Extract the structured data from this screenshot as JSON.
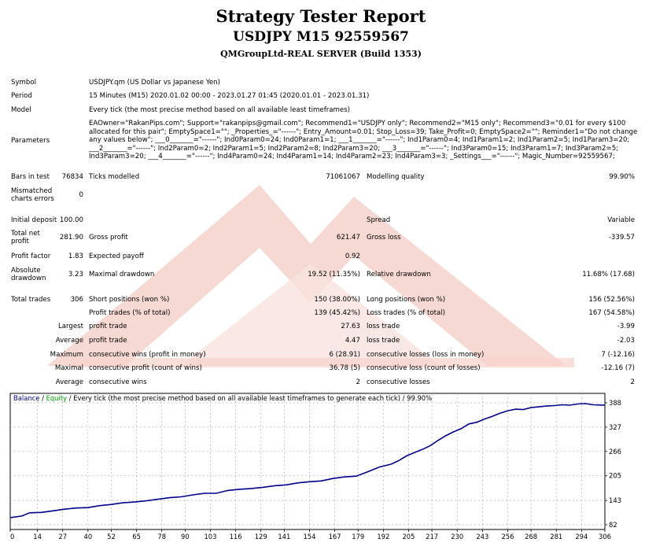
{
  "header": {
    "title": "Strategy Tester Report",
    "subtitle": "USDJPY M15 92559567",
    "server": "QMGroupLtd-REAL SERVER (Build 1353)"
  },
  "info": {
    "symbol_label": "Symbol",
    "symbol_value": "USDJPY.qm (US Dollar vs Japanese Yen)",
    "period_label": "Period",
    "period_value": "15 Minutes (M15) 2020.01.02 00:00 - 2023.01.27 01:45 (2020.01.01 - 2023.01.31)",
    "model_label": "Model",
    "model_value": "Every tick (the most precise method based on all available least timeframes)",
    "parameters_label": "Parameters",
    "parameters_value": "EAOwner=\"RakanPips.com\"; Support=\"rakanpips@gmail.com\"; Recommend1=\"USDJPY only\"; Recommend2=\"M15 only\"; Recommend3=\"0.01 for every $100 allocated for this pair\"; EmptySpace1=\"\"; _Properties_=\"------\"; Entry_Amount=0.01; Stop_Loss=39; Take_Profit=0; EmptySpace2=\"\"; Reminder1=\"Do not change any values below\"; ___0_______=\"------\"; Ind0Param0=24; Ind0Param1=1; ___1_______=\"------\"; Ind1Param0=4; Ind1Param1=2; Ind1Param2=5; Ind1Param3=20; ___2_______=\"------\"; Ind2Param0=2; Ind2Param1=5; Ind2Param2=8; Ind2Param3=20; ___3_______=\"------\"; Ind3Param0=15; Ind3Param1=7; Ind3Param2=5; Ind3Param3=20; ___4_______=\"------\"; Ind4Param0=24; Ind4Param1=14; Ind4Param2=23; Ind4Param3=3; _Settings___=\"------\"; Magic_Number=92559567;"
  },
  "stats": {
    "bars_label": "Bars in test",
    "bars_value": "76834",
    "ticks_label": "Ticks modelled",
    "ticks_value": "71061067",
    "quality_label": "Modelling quality",
    "quality_value": "99.90%",
    "mismatch_label_1": "Mismatched",
    "mismatch_label_2": "charts errors",
    "mismatch_value": "0",
    "deposit_label": "Initial deposit",
    "deposit_value": "100.00",
    "spread_label": "Spread",
    "spread_value": "Variable",
    "netprofit_label_1": "Total net",
    "netprofit_label_2": "profit",
    "netprofit_value": "281.90",
    "grossprofit_label": "Gross profit",
    "grossprofit_value": "621.47",
    "grossloss_label": "Gross loss",
    "grossloss_value": "-339.57",
    "pf_label": "Profit factor",
    "pf_value": "1.83",
    "payoff_label": "Expected payoff",
    "payoff_value": "0.92",
    "absdd_label_1": "Absolute",
    "absdd_label_2": "drawdown",
    "absdd_value": "3.23",
    "maxdd_label": "Maximal drawdown",
    "maxdd_value": "19.52 (11.35%)",
    "reldd_label": "Relative drawdown",
    "reldd_value": "11.68% (17.68)",
    "trades_label": "Total trades",
    "trades_value": "306",
    "short_label": "Short positions (won %)",
    "short_value": "150 (38.00%)",
    "long_label": "Long positions (won %)",
    "long_value": "156 (52.56%)",
    "pt_label": "Profit trades (% of total)",
    "pt_value": "139 (45.42%)",
    "lt_label": "Loss trades (% of total)",
    "lt_value": "167 (54.58%)",
    "largest_label": "Largest",
    "largest_pt_label": "profit trade",
    "largest_pt_value": "27.63",
    "largest_lt_label": "loss trade",
    "largest_lt_value": "-3.99",
    "average_label": "Average",
    "average_pt_label": "profit trade",
    "average_pt_value": "4.47",
    "average_lt_label": "loss trade",
    "average_lt_value": "-2.03",
    "maximum_label": "Maximum",
    "max_cw_label": "consecutive wins (profit in money)",
    "max_cw_value": "6 (28.91)",
    "max_cl_label": "consecutive losses (loss in money)",
    "max_cl_value": "7 (-12.16)",
    "maximal_label": "Maximal",
    "maximal_cp_label": "consecutive profit (count of wins)",
    "maximal_cp_value": "36.78 (5)",
    "maximal_cl_label": "consecutive loss (count of losses)",
    "maximal_cl_value": "-12.16 (7)",
    "average2_label": "Average",
    "avg_cw_label": "consecutive wins",
    "avg_cw_value": "2",
    "avg_cl_label": "consecutive losses",
    "avg_cl_value": "2"
  },
  "chart_data": {
    "type": "line",
    "legend_balance": "Balance",
    "legend_sep1": " / ",
    "legend_equity": "Equity",
    "legend_rest": " / Every tick (the most precise method based on all available least timeframes to generate each tick) / 99.90%",
    "x_ticks": [
      "0",
      "14",
      "27",
      "40",
      "52",
      "65",
      "78",
      "90",
      "103",
      "116",
      "129",
      "141",
      "154",
      "167",
      "179",
      "192",
      "205",
      "217",
      "230",
      "243",
      "256",
      "268",
      "281",
      "294",
      "306"
    ],
    "y_ticks": [
      "388",
      "327",
      "266",
      "205",
      "143",
      "82"
    ],
    "xlim": [
      0,
      306
    ],
    "ylim": [
      82,
      388
    ],
    "grid": true,
    "balance_color": "#00008b",
    "series": [
      {
        "name": "Balance",
        "x": [
          0,
          6,
          10,
          16,
          22,
          28,
          34,
          40,
          46,
          52,
          58,
          64,
          70,
          76,
          82,
          88,
          94,
          100,
          106,
          112,
          118,
          124,
          130,
          136,
          142,
          148,
          154,
          160,
          166,
          172,
          178,
          184,
          190,
          196,
          200,
          204,
          208,
          212,
          216,
          220,
          224,
          228,
          232,
          236,
          240,
          244,
          248,
          252,
          256,
          260,
          264,
          268,
          272,
          276,
          280,
          284,
          288,
          292,
          296,
          300,
          306
        ],
        "y": [
          100,
          104,
          112,
          113,
          117,
          121,
          124,
          125,
          130,
          133,
          137,
          139,
          142,
          146,
          150,
          152,
          157,
          161,
          161,
          168,
          171,
          173,
          176,
          180,
          182,
          187,
          190,
          192,
          198,
          202,
          204,
          215,
          227,
          234,
          243,
          255,
          263,
          271,
          280,
          293,
          305,
          315,
          323,
          335,
          339,
          347,
          354,
          362,
          368,
          372,
          371,
          376,
          378,
          380,
          381,
          383,
          382,
          385,
          386,
          383,
          382
        ]
      }
    ]
  }
}
